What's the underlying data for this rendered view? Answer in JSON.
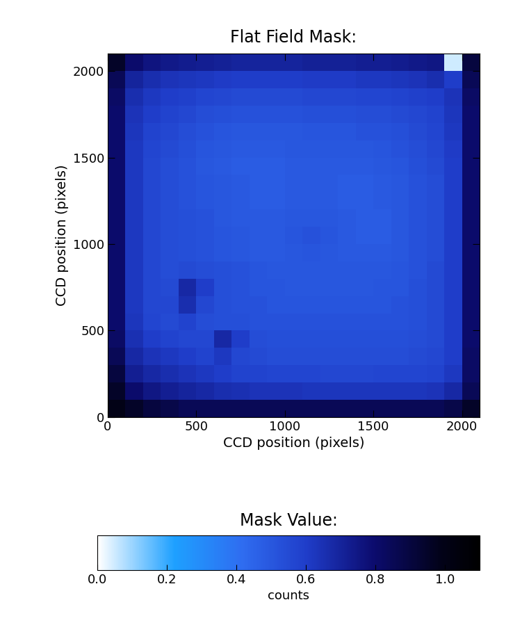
{
  "chart_data": {
    "type": "heatmap",
    "title": "Flat Field Mask:",
    "x_label": "CCD position (pixels)",
    "y_label": "CCD position (pixels)",
    "xlim": [
      0,
      2100
    ],
    "ylim": [
      0,
      2100
    ],
    "xticks": [
      0,
      500,
      1000,
      1500,
      2000
    ],
    "yticks": [
      0,
      500,
      1000,
      1500,
      2000
    ],
    "x_edges": [
      0,
      100,
      200,
      300,
      400,
      500,
      600,
      700,
      800,
      900,
      1000,
      1100,
      1200,
      1300,
      1400,
      1500,
      1600,
      1700,
      1800,
      1900,
      2000,
      2100
    ],
    "y_edges": [
      0,
      100,
      200,
      300,
      400,
      500,
      600,
      700,
      800,
      900,
      1000,
      1100,
      1200,
      1300,
      1400,
      1500,
      1600,
      1700,
      1800,
      1900,
      2000,
      2100
    ],
    "cells": [
      [
        1.0,
        0.95,
        0.9,
        0.88,
        0.85,
        0.85,
        0.85,
        0.85,
        0.85,
        0.85,
        0.85,
        0.85,
        0.85,
        0.85,
        0.85,
        0.85,
        0.85,
        0.85,
        0.85,
        0.88,
        0.95
      ],
      [
        0.95,
        0.8,
        0.75,
        0.72,
        0.7,
        0.68,
        0.66,
        0.65,
        0.64,
        0.64,
        0.64,
        0.63,
        0.63,
        0.63,
        0.63,
        0.63,
        0.63,
        0.63,
        0.64,
        0.68,
        0.85
      ],
      [
        0.9,
        0.72,
        0.68,
        0.66,
        0.64,
        0.62,
        0.6,
        0.58,
        0.58,
        0.57,
        0.57,
        0.57,
        0.56,
        0.56,
        0.56,
        0.57,
        0.57,
        0.57,
        0.58,
        0.62,
        0.82
      ],
      [
        0.85,
        0.68,
        0.64,
        0.62,
        0.6,
        0.58,
        0.62,
        0.56,
        0.55,
        0.54,
        0.54,
        0.54,
        0.54,
        0.54,
        0.54,
        0.54,
        0.54,
        0.55,
        0.56,
        0.6,
        0.82
      ],
      [
        0.82,
        0.65,
        0.6,
        0.58,
        0.56,
        0.56,
        0.68,
        0.6,
        0.54,
        0.53,
        0.53,
        0.53,
        0.53,
        0.53,
        0.53,
        0.53,
        0.53,
        0.54,
        0.55,
        0.6,
        0.8
      ],
      [
        0.8,
        0.63,
        0.57,
        0.55,
        0.58,
        0.54,
        0.53,
        0.53,
        0.52,
        0.52,
        0.52,
        0.52,
        0.52,
        0.52,
        0.52,
        0.52,
        0.52,
        0.53,
        0.55,
        0.6,
        0.8
      ],
      [
        0.8,
        0.62,
        0.56,
        0.56,
        0.66,
        0.56,
        0.53,
        0.52,
        0.52,
        0.51,
        0.51,
        0.51,
        0.51,
        0.51,
        0.51,
        0.51,
        0.52,
        0.53,
        0.55,
        0.6,
        0.8
      ],
      [
        0.8,
        0.62,
        0.56,
        0.55,
        0.68,
        0.6,
        0.53,
        0.52,
        0.51,
        0.51,
        0.5,
        0.5,
        0.5,
        0.5,
        0.5,
        0.51,
        0.51,
        0.53,
        0.55,
        0.6,
        0.8
      ],
      [
        0.8,
        0.62,
        0.56,
        0.54,
        0.55,
        0.54,
        0.53,
        0.52,
        0.51,
        0.5,
        0.5,
        0.5,
        0.5,
        0.5,
        0.5,
        0.5,
        0.51,
        0.52,
        0.55,
        0.6,
        0.8
      ],
      [
        0.8,
        0.62,
        0.56,
        0.54,
        0.53,
        0.52,
        0.51,
        0.5,
        0.49,
        0.49,
        0.5,
        0.51,
        0.5,
        0.49,
        0.49,
        0.49,
        0.5,
        0.52,
        0.54,
        0.6,
        0.8
      ],
      [
        0.8,
        0.62,
        0.56,
        0.54,
        0.53,
        0.52,
        0.51,
        0.5,
        0.49,
        0.49,
        0.51,
        0.52,
        0.51,
        0.49,
        0.48,
        0.48,
        0.5,
        0.52,
        0.54,
        0.6,
        0.8
      ],
      [
        0.8,
        0.62,
        0.56,
        0.54,
        0.53,
        0.52,
        0.5,
        0.49,
        0.49,
        0.49,
        0.5,
        0.5,
        0.5,
        0.49,
        0.48,
        0.48,
        0.5,
        0.52,
        0.54,
        0.6,
        0.8
      ],
      [
        0.8,
        0.62,
        0.56,
        0.54,
        0.52,
        0.51,
        0.5,
        0.49,
        0.48,
        0.48,
        0.49,
        0.49,
        0.49,
        0.48,
        0.48,
        0.49,
        0.5,
        0.52,
        0.54,
        0.6,
        0.8
      ],
      [
        0.8,
        0.62,
        0.56,
        0.54,
        0.52,
        0.51,
        0.5,
        0.49,
        0.48,
        0.48,
        0.49,
        0.49,
        0.49,
        0.48,
        0.48,
        0.49,
        0.5,
        0.52,
        0.54,
        0.6,
        0.8
      ],
      [
        0.8,
        0.62,
        0.56,
        0.54,
        0.52,
        0.5,
        0.49,
        0.48,
        0.48,
        0.48,
        0.49,
        0.49,
        0.49,
        0.49,
        0.49,
        0.5,
        0.51,
        0.53,
        0.55,
        0.6,
        0.8
      ],
      [
        0.8,
        0.62,
        0.57,
        0.55,
        0.53,
        0.51,
        0.5,
        0.49,
        0.49,
        0.49,
        0.5,
        0.5,
        0.5,
        0.5,
        0.5,
        0.51,
        0.52,
        0.54,
        0.56,
        0.61,
        0.8
      ],
      [
        0.8,
        0.63,
        0.58,
        0.56,
        0.54,
        0.52,
        0.51,
        0.5,
        0.5,
        0.5,
        0.5,
        0.51,
        0.51,
        0.51,
        0.52,
        0.52,
        0.53,
        0.55,
        0.57,
        0.62,
        0.8
      ],
      [
        0.8,
        0.64,
        0.6,
        0.58,
        0.56,
        0.54,
        0.53,
        0.52,
        0.52,
        0.52,
        0.52,
        0.53,
        0.53,
        0.53,
        0.54,
        0.54,
        0.55,
        0.56,
        0.58,
        0.63,
        0.8
      ],
      [
        0.82,
        0.66,
        0.62,
        0.6,
        0.59,
        0.57,
        0.56,
        0.55,
        0.55,
        0.55,
        0.55,
        0.56,
        0.56,
        0.56,
        0.57,
        0.57,
        0.58,
        0.59,
        0.6,
        0.64,
        0.82
      ],
      [
        0.85,
        0.7,
        0.66,
        0.64,
        0.63,
        0.62,
        0.61,
        0.6,
        0.6,
        0.6,
        0.6,
        0.61,
        0.61,
        0.61,
        0.62,
        0.62,
        0.63,
        0.64,
        0.66,
        0.6,
        0.85
      ],
      [
        0.95,
        0.8,
        0.76,
        0.74,
        0.73,
        0.72,
        0.71,
        0.7,
        0.7,
        0.7,
        0.7,
        0.71,
        0.71,
        0.71,
        0.72,
        0.72,
        0.73,
        0.74,
        0.75,
        0.05,
        0.9
      ]
    ],
    "colorbar_title": "Mask Value:",
    "colorbar_label": "counts",
    "colorbar_lim": [
      0,
      1.1
    ],
    "colorbar_ticks": [
      {
        "value": 0,
        "label": "0.0"
      },
      {
        "value": 0.2,
        "label": "0.2"
      },
      {
        "value": 0.4,
        "label": "0.4"
      },
      {
        "value": 0.6,
        "label": "0.6"
      },
      {
        "value": 0.8,
        "label": "0.8"
      },
      {
        "value": 1.0,
        "label": "1.0"
      }
    ]
  }
}
